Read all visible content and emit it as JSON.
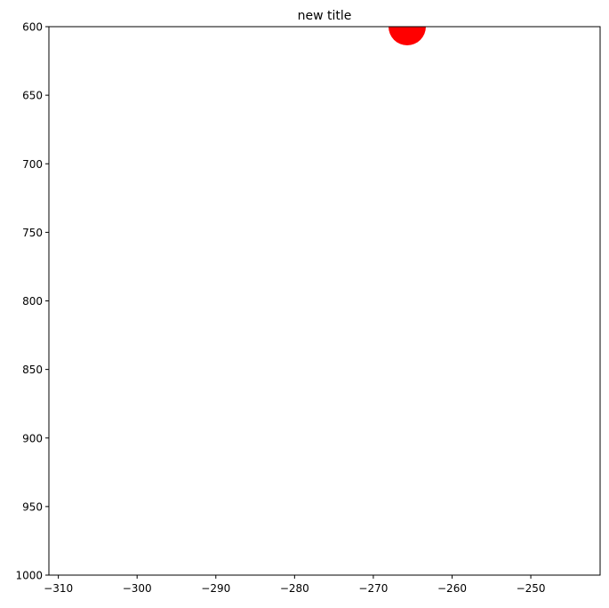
{
  "chart_data": {
    "type": "scatter",
    "title": "new title",
    "xlabel": "",
    "ylabel": "",
    "xlim": [
      -311.2,
      -241.2
    ],
    "ylim": [
      1000,
      600
    ],
    "y_inverted": true,
    "grid": false,
    "legend": "none",
    "x_ticks": [
      -310,
      -300,
      -290,
      -280,
      -270,
      -260,
      -250
    ],
    "x_tick_labels": [
      "−310",
      "−300",
      "−290",
      "−280",
      "−270",
      "−260",
      "−250"
    ],
    "y_ticks": [
      600,
      650,
      700,
      750,
      800,
      850,
      900,
      950,
      1000
    ],
    "y_tick_labels": [
      "600",
      "650",
      "700",
      "750",
      "800",
      "850",
      "900",
      "950",
      "1000"
    ],
    "series": [
      {
        "x": [
          -265.7
        ],
        "y": [
          600
        ],
        "color": "#ff0000",
        "marker": "circle"
      }
    ]
  }
}
